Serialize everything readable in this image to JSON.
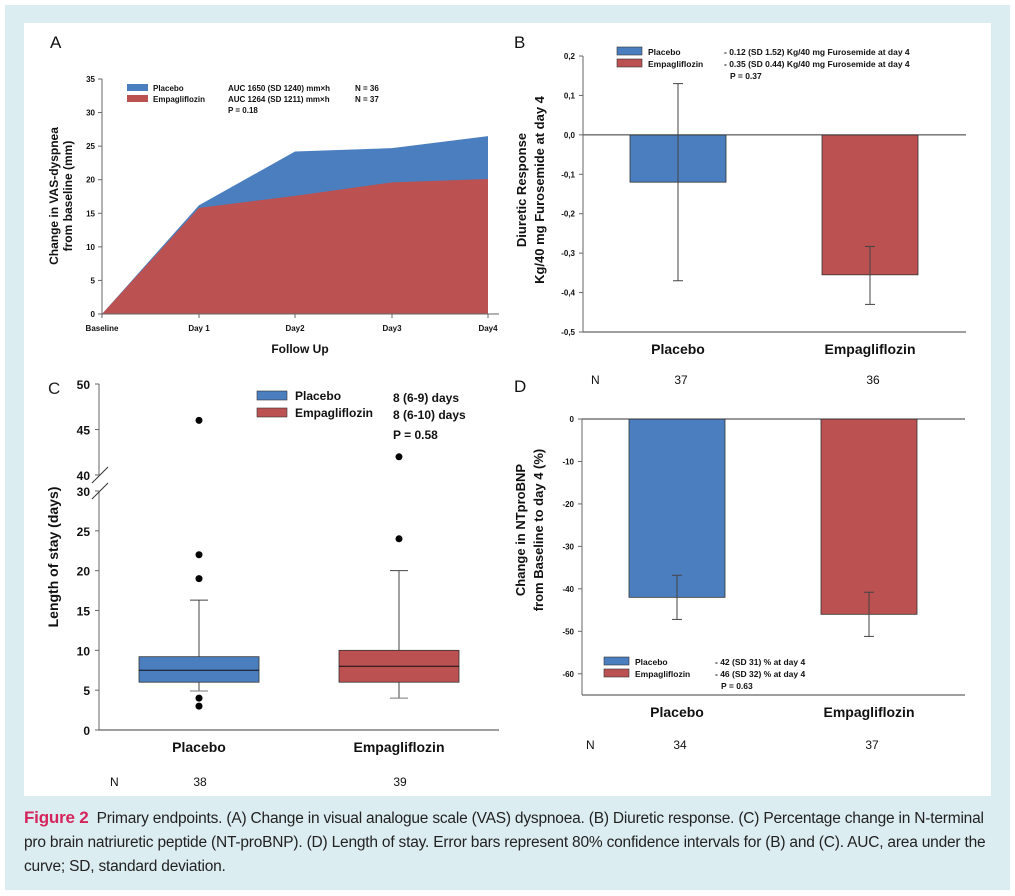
{
  "colors": {
    "placebo": "#4a7ebf",
    "empagliflozin": "#bb5150",
    "frame": "#dcedf2",
    "caption_accent": "#d5245b"
  },
  "caption": {
    "figure_label": "Figure 2",
    "text": "Primary endpoints. (A) Change in visual analogue scale (VAS) dyspnoea. (B) Diuretic response. (C) Percentage change in N-terminal pro brain natriuretic peptide (NT-proBNP). (D) Length of stay. Error bars represent 80% confidence intervals for (B) and (C). AUC, area under the curve; SD, standard deviation."
  },
  "chart_data": [
    {
      "panel": "A",
      "type": "area",
      "title": "",
      "xlabel": "Follow Up",
      "ylabel": [
        "Change in VAS-dyspnea",
        "from baseline (mm)"
      ],
      "categories": [
        "Baseline",
        "Day 1",
        "Day2",
        "Day3",
        "Day4"
      ],
      "ylim": [
        0,
        35
      ],
      "yticks": [
        0,
        5,
        10,
        15,
        20,
        25,
        30,
        35
      ],
      "series": [
        {
          "name": "Placebo",
          "values": [
            0,
            16.2,
            24.2,
            24.7,
            26.5
          ],
          "stat": "AUC 1650 (SD 1240) mm×h",
          "n": "N = 36"
        },
        {
          "name": "Empagliflozin",
          "values": [
            0,
            15.8,
            17.6,
            19.6,
            20.1
          ],
          "stat": "AUC 1264 (SD 1211) mm×h",
          "n": "N = 37"
        }
      ],
      "p_value": "P = 0.18",
      "legend": "top-left",
      "grid": false
    },
    {
      "panel": "B",
      "type": "bar",
      "ylabel": [
        "Diuretic Response",
        "Kg/40 mg Furosemide at day 4"
      ],
      "categories": [
        "Placebo",
        "Empagliflozin"
      ],
      "values": [
        -0.12,
        -0.355
      ],
      "error_low": [
        -0.37,
        -0.43
      ],
      "error_high": [
        0.13,
        -0.283
      ],
      "ylim": [
        -0.5,
        0.2
      ],
      "yticks": [
        0.2,
        0.1,
        0.0,
        -0.1,
        -0.2,
        -0.3,
        -0.4,
        -0.5
      ],
      "ytick_labels": [
        "0,2",
        "0,1",
        "0,0",
        "-0,1",
        "-0,2",
        "-0,3",
        "-0,4",
        "-0,5"
      ],
      "legend_entries": [
        {
          "name": "Placebo",
          "stat": "- 0.12 (SD 1.52) Kg/40 mg Furosemide at day 4"
        },
        {
          "name": "Empagliflozin",
          "stat": "- 0.35 (SD 0.44) Kg/40 mg Furosemide at day 4"
        }
      ],
      "p_value": "P = 0.37",
      "n_label": "N",
      "n_values": [
        "37",
        "36"
      ],
      "legend": "top"
    },
    {
      "panel": "C",
      "type": "box",
      "ylabel": "Length of stay (days)",
      "categories": [
        "Placebo",
        "Empagliflozin"
      ],
      "boxes": [
        {
          "name": "Placebo",
          "whisker_low": 4.9,
          "q1": 6,
          "median": 7.5,
          "q3": 9.2,
          "whisker_high": 16.3,
          "outliers": [
            3,
            4,
            19,
            22,
            46
          ]
        },
        {
          "name": "Empagliflozin",
          "whisker_low": 4,
          "q1": 6,
          "median": 8,
          "q3": 10,
          "whisker_high": 20,
          "outliers": [
            24,
            42
          ]
        }
      ],
      "ylim": [
        0,
        50
      ],
      "axis_break": [
        30,
        40
      ],
      "yticks": [
        0,
        5,
        10,
        15,
        20,
        25,
        30,
        40,
        45,
        50
      ],
      "legend_entries": [
        {
          "name": "Placebo",
          "stat": "8 (6-9) days"
        },
        {
          "name": "Empagliflozin",
          "stat": "8 (6-10) days"
        }
      ],
      "p_value": "P = 0.58",
      "n_label": "N",
      "n_values": [
        "38",
        "39"
      ],
      "legend": "top-right"
    },
    {
      "panel": "D",
      "type": "bar",
      "ylabel": [
        "Change in NTproBNP",
        "from Baseline to day 4 (%)"
      ],
      "categories": [
        "Placebo",
        "Empagliflozin"
      ],
      "values": [
        -42,
        -46
      ],
      "error_low": [
        -47.2,
        -51.2
      ],
      "error_high": [
        -36.8,
        -40.8
      ],
      "ylim": [
        -65,
        0
      ],
      "yticks": [
        0,
        -10,
        -20,
        -30,
        -40,
        -50,
        -60
      ],
      "legend_entries": [
        {
          "name": "Placebo",
          "stat": "- 42 (SD 31) % at day 4"
        },
        {
          "name": "Empagliflozin",
          "stat": "- 46 (SD 32) % at day 4"
        }
      ],
      "p_value": "P = 0.63",
      "n_label": "N",
      "n_values": [
        "34",
        "37"
      ],
      "legend": "bottom-left"
    }
  ]
}
